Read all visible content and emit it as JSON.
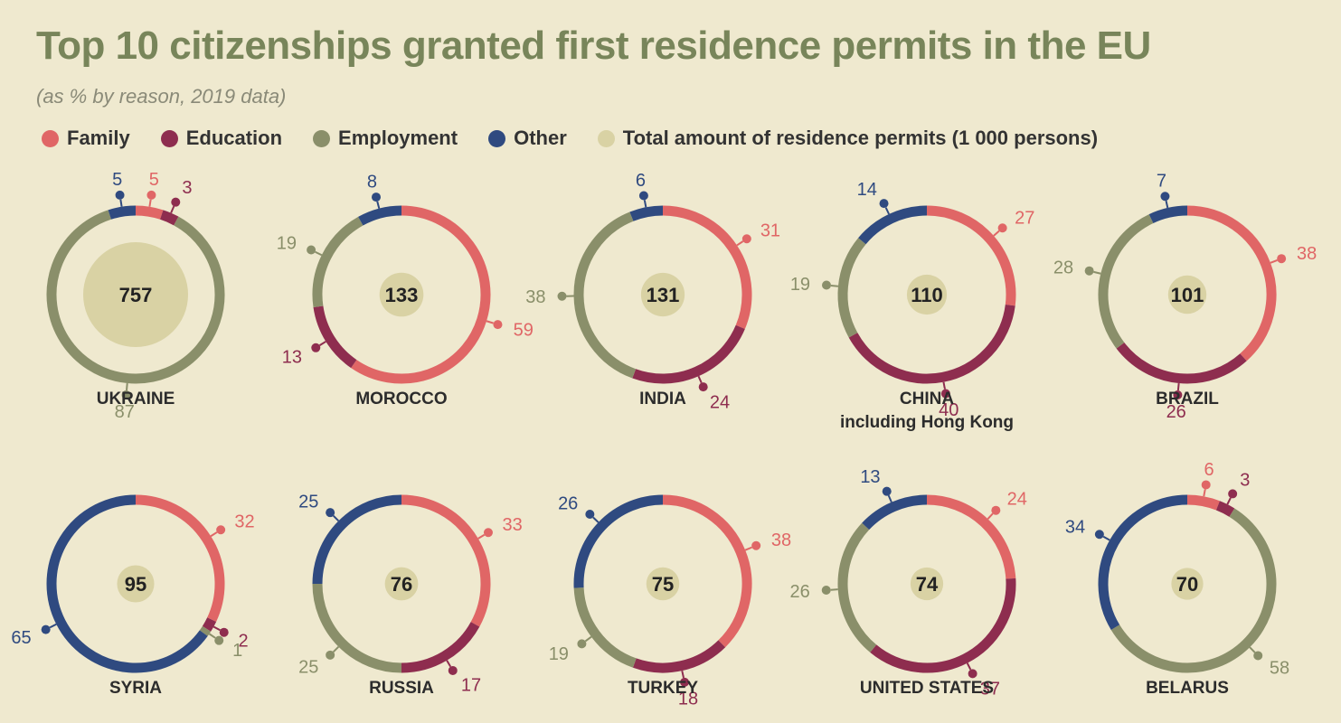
{
  "title": "Top 10 citizenships granted first residence permits in the EU",
  "subtitle": "(as % by reason, 2019 data)",
  "legend": [
    {
      "label": "Family",
      "color": "#e06666"
    },
    {
      "label": "Education",
      "color": "#8e2d4f"
    },
    {
      "label": "Employment",
      "color": "#8a8f6a"
    },
    {
      "label": "Other",
      "color": "#2f4a80"
    },
    {
      "label": "Total amount of residence permits (1 000 persons)",
      "color": "#d9d2a4"
    }
  ],
  "chart_data": {
    "type": "donut",
    "title": "Top 10 citizenships granted first residence permits in the EU",
    "subtitle": "(as % by reason, 2019 data)",
    "unit": "%",
    "total_unit": "1 000 persons",
    "categories": [
      "Family",
      "Education",
      "Employment",
      "Other"
    ],
    "colors": {
      "Family": "#e06666",
      "Education": "#8e2d4f",
      "Employment": "#8a8f6a",
      "Other": "#2f4a80",
      "Total": "#d9d2a4"
    },
    "countries": [
      {
        "name": "UKRAINE",
        "total": 757,
        "values": {
          "Family": 5,
          "Education": 3,
          "Employment": 87,
          "Other": 5
        }
      },
      {
        "name": "MOROCCO",
        "total": 133,
        "values": {
          "Family": 59,
          "Education": 13,
          "Employment": 19,
          "Other": 8
        }
      },
      {
        "name": "INDIA",
        "total": 131,
        "values": {
          "Family": 31,
          "Education": 24,
          "Employment": 38,
          "Other": 6
        }
      },
      {
        "name": "CHINA",
        "subname": "including Hong Kong",
        "total": 110,
        "values": {
          "Family": 27,
          "Education": 40,
          "Employment": 19,
          "Other": 14
        }
      },
      {
        "name": "BRAZIL",
        "total": 101,
        "values": {
          "Family": 38,
          "Education": 26,
          "Employment": 28,
          "Other": 7
        }
      },
      {
        "name": "SYRIA",
        "total": 95,
        "values": {
          "Family": 32,
          "Education": 2,
          "Employment": 1,
          "Other": 65
        }
      },
      {
        "name": "RUSSIA",
        "total": 76,
        "values": {
          "Family": 33,
          "Education": 17,
          "Employment": 25,
          "Other": 25
        }
      },
      {
        "name": "TURKEY",
        "total": 75,
        "values": {
          "Family": 38,
          "Education": 18,
          "Employment": 19,
          "Other": 26
        }
      },
      {
        "name": "UNITED STATES",
        "total": 74,
        "values": {
          "Family": 24,
          "Education": 37,
          "Employment": 26,
          "Other": 13
        }
      },
      {
        "name": "BELARUS",
        "total": 70,
        "values": {
          "Family": 6,
          "Education": 3,
          "Employment": 58,
          "Other": 34
        }
      }
    ]
  }
}
